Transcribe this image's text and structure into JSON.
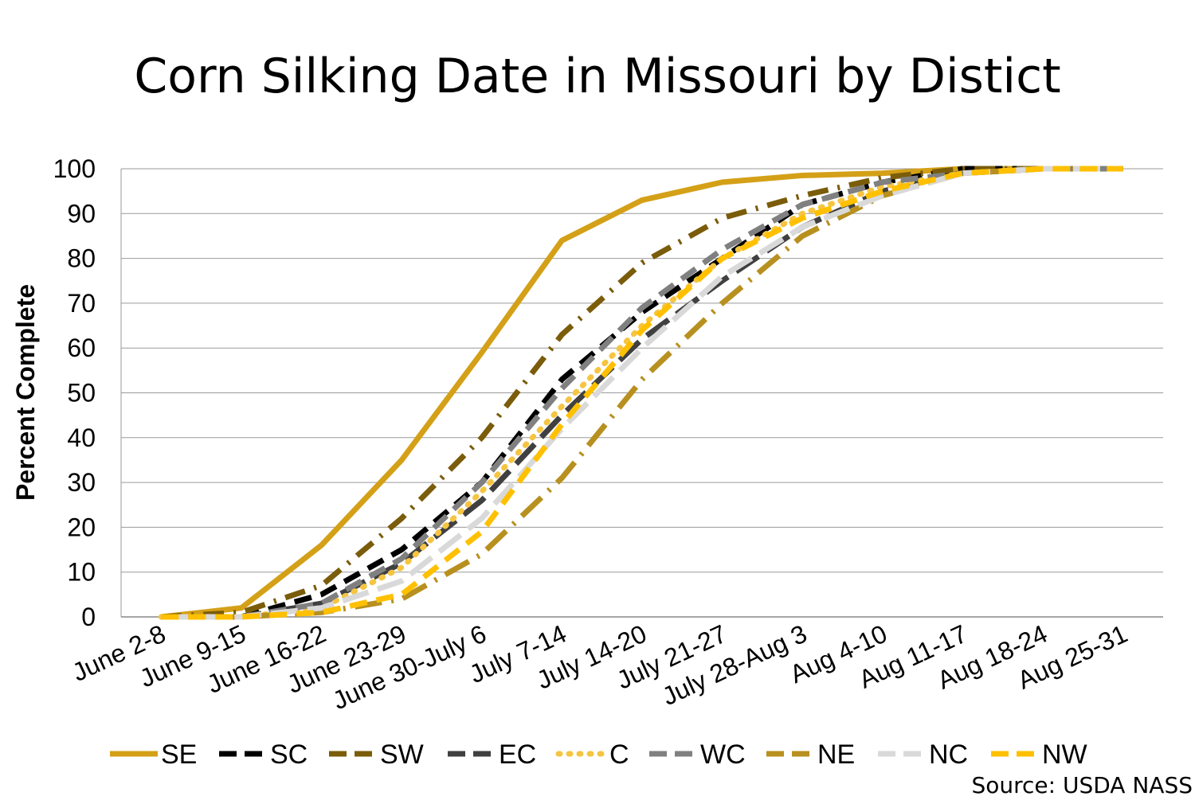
{
  "chart_data": {
    "type": "line",
    "title": "Corn Silking Date in Missouri by Distict",
    "xlabel": "",
    "ylabel": "Percent Complete",
    "ylim": [
      0,
      100
    ],
    "yticks": [
      0,
      10,
      20,
      30,
      40,
      50,
      60,
      70,
      80,
      90,
      100
    ],
    "grid": true,
    "legend_position": "bottom",
    "categories": [
      "June 2-8",
      "June 9-15",
      "June 16-22",
      "June 23-29",
      "June 30-July 6",
      "July 7-14",
      "July 14-20",
      "July 21-27",
      "July 28-Aug 3",
      "Aug 4-10",
      "Aug 11-17",
      "Aug 18-24",
      "Aug 25-31"
    ],
    "series": [
      {
        "name": "SE",
        "color": "#D4A017",
        "style": "solid",
        "values": [
          0,
          2,
          16,
          35,
          59,
          84,
          93,
          97,
          98.5,
          99,
          100,
          100,
          100
        ]
      },
      {
        "name": "SC",
        "color": "#000000",
        "style": "dash",
        "values": [
          0,
          0,
          5,
          15,
          30,
          53,
          68,
          80,
          92,
          97,
          100,
          100,
          100
        ]
      },
      {
        "name": "SW",
        "color": "#7A5C0A",
        "style": "dashdot",
        "values": [
          0,
          1,
          7,
          22,
          40,
          63,
          79,
          89,
          94,
          98,
          100,
          100,
          100
        ]
      },
      {
        "name": "EC",
        "color": "#404040",
        "style": "longdash",
        "values": [
          0,
          0,
          3,
          12,
          26,
          45,
          62,
          75,
          87,
          95,
          99,
          100,
          100
        ]
      },
      {
        "name": "C",
        "color": "#F5C542",
        "style": "dot",
        "values": [
          0,
          0,
          2,
          11,
          28,
          47,
          65,
          80,
          90,
          96,
          99,
          100,
          100
        ]
      },
      {
        "name": "WC",
        "color": "#808080",
        "style": "dash",
        "values": [
          0,
          0,
          3,
          13,
          30,
          51,
          69,
          82,
          92,
          97,
          99,
          100,
          100
        ]
      },
      {
        "name": "NE",
        "color": "#B8901F",
        "style": "longdashdot",
        "values": [
          0,
          0,
          1,
          4,
          14,
          31,
          53,
          70,
          85,
          94,
          99,
          100,
          100
        ]
      },
      {
        "name": "NC",
        "color": "#D9D9D9",
        "style": "longdash",
        "values": [
          0,
          0,
          2,
          8,
          22,
          42,
          60,
          76,
          87,
          94,
          99,
          100,
          100
        ]
      },
      {
        "name": "NW",
        "color": "#FFC000",
        "style": "dash",
        "values": [
          0,
          0,
          1,
          5,
          19,
          43,
          64,
          80,
          89,
          95,
          99,
          100,
          100
        ]
      }
    ]
  },
  "source": "Source: USDA NASS"
}
